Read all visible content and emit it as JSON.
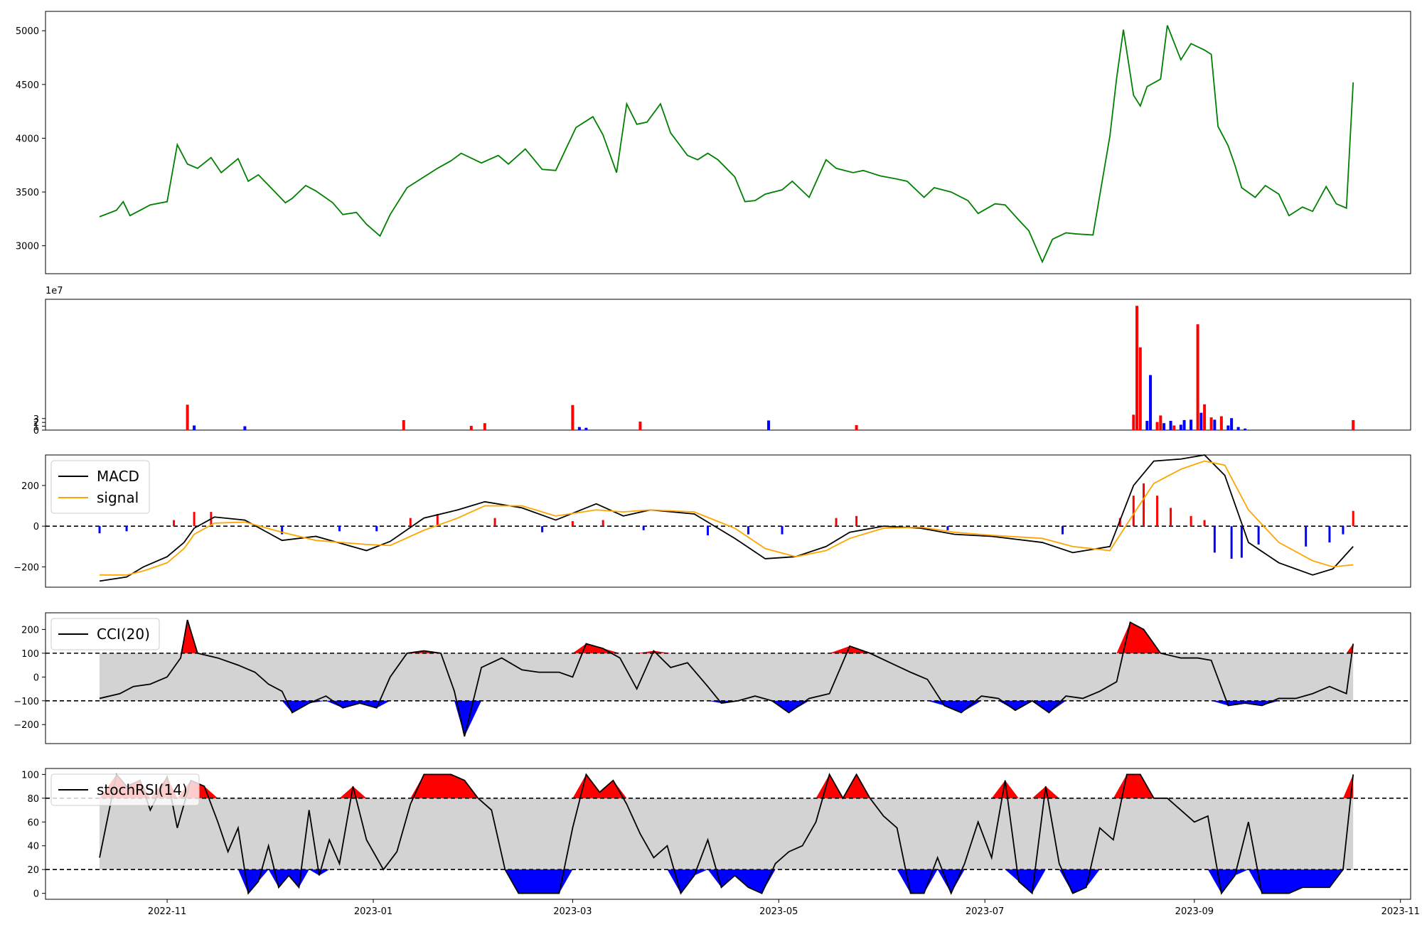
{
  "x_axis": {
    "ticks": [
      "2022-11",
      "2023-01",
      "2023-03",
      "2023-05",
      "2023-07",
      "2023-09",
      "2023-11"
    ],
    "range": [
      "2022-09-26",
      "2023-11-04"
    ]
  },
  "colors": {
    "price": "#008000",
    "up": "#ff0000",
    "down": "#0000ff",
    "line": "#000000",
    "signal": "#ffa500",
    "band": "#d3d3d3"
  },
  "chart_data": [
    {
      "type": "line",
      "panel": "price",
      "ylim": [
        2740,
        5180
      ],
      "yticks": [
        "3000",
        "3500",
        "4000",
        "4500",
        "5000"
      ],
      "x": [
        "2022-10-12",
        "2022-10-17",
        "2022-10-19",
        "2022-10-21",
        "2022-10-24",
        "2022-10-27",
        "2022-11-01",
        "2022-11-04",
        "2022-11-07",
        "2022-11-10",
        "2022-11-14",
        "2022-11-17",
        "2022-11-22",
        "2022-11-25",
        "2022-11-28",
        "2022-12-02",
        "2022-12-06",
        "2022-12-08",
        "2022-12-12",
        "2022-12-15",
        "2022-12-20",
        "2022-12-23",
        "2022-12-27",
        "2022-12-30",
        "2023-01-03",
        "2023-01-06",
        "2023-01-11",
        "2023-01-16",
        "2023-01-20",
        "2023-01-24",
        "2023-01-27",
        "2023-02-02",
        "2023-02-07",
        "2023-02-10",
        "2023-02-15",
        "2023-02-20",
        "2023-02-24",
        "2023-03-02",
        "2023-03-07",
        "2023-03-10",
        "2023-03-14",
        "2023-03-17",
        "2023-03-20",
        "2023-03-23",
        "2023-03-27",
        "2023-03-30",
        "2023-04-04",
        "2023-04-07",
        "2023-04-10",
        "2023-04-13",
        "2023-04-18",
        "2023-04-21",
        "2023-04-24",
        "2023-04-27",
        "2023-05-02",
        "2023-05-05",
        "2023-05-10",
        "2023-05-15",
        "2023-05-18",
        "2023-05-23",
        "2023-05-26",
        "2023-05-31",
        "2023-06-05",
        "2023-06-08",
        "2023-06-13",
        "2023-06-16",
        "2023-06-21",
        "2023-06-26",
        "2023-06-29",
        "2023-07-04",
        "2023-07-07",
        "2023-07-11",
        "2023-07-14",
        "2023-07-18",
        "2023-07-21",
        "2023-07-25",
        "2023-07-28",
        "2023-08-02",
        "2023-08-07",
        "2023-08-09",
        "2023-08-11",
        "2023-08-14",
        "2023-08-16",
        "2023-08-18",
        "2023-08-22",
        "2023-08-24",
        "2023-08-28",
        "2023-08-31",
        "2023-09-04",
        "2023-09-06",
        "2023-09-08",
        "2023-09-11",
        "2023-09-13",
        "2023-09-15",
        "2023-09-19",
        "2023-09-22",
        "2023-09-26",
        "2023-09-29",
        "2023-10-03",
        "2023-10-06",
        "2023-10-10",
        "2023-10-13",
        "2023-10-16",
        "2023-10-18"
      ],
      "values": [
        3270,
        3330,
        3410,
        3280,
        3330,
        3380,
        3410,
        3940,
        3760,
        3720,
        3820,
        3680,
        3810,
        3600,
        3660,
        3530,
        3400,
        3440,
        3560,
        3510,
        3400,
        3290,
        3310,
        3200,
        3090,
        3290,
        3540,
        3640,
        3720,
        3790,
        3860,
        3770,
        3840,
        3760,
        3900,
        3710,
        3700,
        4100,
        4200,
        4030,
        3680,
        4320,
        4130,
        4150,
        4320,
        4050,
        3840,
        3800,
        3860,
        3800,
        3640,
        3410,
        3420,
        3480,
        3520,
        3600,
        3450,
        3800,
        3720,
        3680,
        3700,
        3650,
        3620,
        3600,
        3450,
        3540,
        3500,
        3420,
        3300,
        3390,
        3380,
        3240,
        3140,
        2850,
        3060,
        3120,
        3110,
        3100,
        4020,
        4560,
        5010,
        4400,
        4300,
        4480,
        4550,
        5050,
        4730,
        4880,
        4820,
        4780,
        4110,
        3930,
        3750,
        3540,
        3450,
        3560,
        3480,
        3280,
        3360,
        3320,
        3550,
        3390,
        3350,
        4520
      ]
    },
    {
      "type": "bar",
      "panel": "volume",
      "exponent_label": "1e7",
      "ylim": [
        0,
        34
      ],
      "yticks": [
        "0",
        "1",
        "2",
        "3"
      ],
      "x": [
        "2022-11-07",
        "2022-11-09",
        "2022-11-24",
        "2023-01-10",
        "2023-01-30",
        "2023-02-03",
        "2023-03-01",
        "2023-03-03",
        "2023-03-05",
        "2023-03-21",
        "2023-04-28",
        "2023-05-24",
        "2023-08-14",
        "2023-08-15",
        "2023-08-16",
        "2023-08-18",
        "2023-08-19",
        "2023-08-21",
        "2023-08-22",
        "2023-08-23",
        "2023-08-25",
        "2023-08-26",
        "2023-08-28",
        "2023-08-29",
        "2023-08-31",
        "2023-09-02",
        "2023-09-03",
        "2023-09-04",
        "2023-09-06",
        "2023-09-07",
        "2023-09-09",
        "2023-09-11",
        "2023-09-12",
        "2023-09-14",
        "2023-09-16",
        "2023-10-18"
      ],
      "values": [
        6.6,
        1.2,
        1.0,
        2.6,
        1.1,
        1.8,
        6.5,
        0.8,
        0.6,
        2.2,
        2.5,
        1.3,
        4.0,
        32.3,
        21.5,
        2.4,
        14.3,
        2.1,
        3.8,
        1.8,
        2.4,
        1.2,
        1.4,
        2.6,
        2.7,
        27.5,
        4.5,
        6.7,
        3.3,
        2.7,
        3.6,
        1.2,
        3.1,
        0.8,
        0.4,
        2.6
      ],
      "directions": [
        "up",
        "down",
        "down",
        "up",
        "up",
        "up",
        "up",
        "down",
        "down",
        "up",
        "down",
        "up",
        "up",
        "up",
        "up",
        "down",
        "down",
        "up",
        "up",
        "down",
        "down",
        "up",
        "down",
        "down",
        "down",
        "up",
        "down",
        "up",
        "up",
        "down",
        "up",
        "down",
        "down",
        "down",
        "down",
        "up"
      ]
    },
    {
      "type": "line",
      "panel": "macd",
      "ylim": [
        -300,
        350
      ],
      "yticks": [
        "−200",
        "0",
        "200"
      ],
      "legend": [
        "MACD",
        "signal"
      ],
      "x": [
        "2022-10-12",
        "2022-10-20",
        "2022-10-25",
        "2022-11-01",
        "2022-11-06",
        "2022-11-09",
        "2022-11-15",
        "2022-11-24",
        "2022-12-05",
        "2022-12-15",
        "2022-12-30",
        "2023-01-06",
        "2023-01-16",
        "2023-01-26",
        "2023-02-03",
        "2023-02-14",
        "2023-02-24",
        "2023-03-08",
        "2023-03-16",
        "2023-03-24",
        "2023-04-06",
        "2023-04-18",
        "2023-04-27",
        "2023-05-06",
        "2023-05-15",
        "2023-05-22",
        "2023-06-01",
        "2023-06-12",
        "2023-06-22",
        "2023-07-03",
        "2023-07-18",
        "2023-07-27",
        "2023-08-07",
        "2023-08-14",
        "2023-08-20",
        "2023-08-28",
        "2023-09-04",
        "2023-09-10",
        "2023-09-17",
        "2023-09-26",
        "2023-10-06",
        "2023-10-12",
        "2023-10-18"
      ],
      "series": [
        {
          "name": "MACD",
          "values": [
            -270,
            -250,
            -200,
            -150,
            -80,
            -10,
            45,
            30,
            -70,
            -50,
            -120,
            -75,
            40,
            80,
            120,
            90,
            30,
            110,
            50,
            80,
            60,
            -60,
            -160,
            -150,
            -100,
            -30,
            0,
            -10,
            -40,
            -50,
            -80,
            -130,
            -100,
            200,
            320,
            330,
            350,
            250,
            -80,
            -180,
            -240,
            -210,
            -100
          ]
        },
        {
          "name": "signal",
          "values": [
            -240,
            -240,
            -220,
            -180,
            -110,
            -40,
            15,
            20,
            -30,
            -70,
            -90,
            -95,
            -20,
            40,
            100,
            100,
            50,
            80,
            70,
            80,
            70,
            -10,
            -110,
            -150,
            -120,
            -60,
            -10,
            -5,
            -30,
            -45,
            -60,
            -100,
            -120,
            60,
            210,
            280,
            320,
            300,
            80,
            -80,
            -170,
            -200,
            -190
          ]
        }
      ],
      "histogram_up": [
        [
          "2022-11-03",
          30
        ],
        [
          "2022-11-09",
          70
        ],
        [
          "2022-11-14",
          70
        ],
        [
          "2023-01-12",
          40
        ],
        [
          "2023-01-20",
          60
        ],
        [
          "2023-02-06",
          40
        ],
        [
          "2023-03-01",
          25
        ],
        [
          "2023-03-10",
          30
        ],
        [
          "2023-05-18",
          40
        ],
        [
          "2023-05-24",
          50
        ],
        [
          "2023-08-10",
          40
        ],
        [
          "2023-08-14",
          150
        ],
        [
          "2023-08-17",
          210
        ],
        [
          "2023-08-21",
          150
        ],
        [
          "2023-08-25",
          90
        ],
        [
          "2023-08-31",
          50
        ],
        [
          "2023-09-04",
          30
        ],
        [
          "2023-10-18",
          75
        ]
      ],
      "histogram_down": [
        [
          "2022-10-12",
          -35
        ],
        [
          "2022-10-20",
          -25
        ],
        [
          "2022-12-05",
          -40
        ],
        [
          "2022-12-22",
          -25
        ],
        [
          "2023-01-02",
          -25
        ],
        [
          "2023-02-20",
          -30
        ],
        [
          "2023-03-22",
          -20
        ],
        [
          "2023-04-10",
          -45
        ],
        [
          "2023-04-22",
          -40
        ],
        [
          "2023-05-02",
          -40
        ],
        [
          "2023-06-20",
          -20
        ],
        [
          "2023-07-24",
          -40
        ],
        [
          "2023-09-07",
          -130
        ],
        [
          "2023-09-12",
          -160
        ],
        [
          "2023-09-15",
          -155
        ],
        [
          "2023-09-20",
          -90
        ],
        [
          "2023-10-04",
          -100
        ],
        [
          "2023-10-11",
          -80
        ],
        [
          "2023-10-15",
          -40
        ]
      ]
    },
    {
      "type": "line",
      "panel": "cci",
      "ylim": [
        -280,
        270
      ],
      "yticks": [
        "−200",
        "−100",
        "0",
        "100",
        "200"
      ],
      "legend": [
        "CCI(20)"
      ],
      "thresholds": [
        -100,
        100
      ],
      "x": [
        "2022-10-12",
        "2022-10-18",
        "2022-10-22",
        "2022-10-27",
        "2022-11-01",
        "2022-11-05",
        "2022-11-07",
        "2022-11-10",
        "2022-11-16",
        "2022-11-22",
        "2022-11-27",
        "2022-12-01",
        "2022-12-05",
        "2022-12-08",
        "2022-12-13",
        "2022-12-18",
        "2022-12-23",
        "2022-12-28",
        "2023-01-02",
        "2023-01-06",
        "2023-01-11",
        "2023-01-16",
        "2023-01-21",
        "2023-01-25",
        "2023-01-28",
        "2023-02-02",
        "2023-02-08",
        "2023-02-14",
        "2023-02-19",
        "2023-02-25",
        "2023-03-01",
        "2023-03-05",
        "2023-03-10",
        "2023-03-15",
        "2023-03-20",
        "2023-03-25",
        "2023-03-30",
        "2023-04-04",
        "2023-04-10",
        "2023-04-14",
        "2023-04-19",
        "2023-04-24",
        "2023-04-29",
        "2023-05-04",
        "2023-05-10",
        "2023-05-16",
        "2023-05-22",
        "2023-05-28",
        "2023-06-03",
        "2023-06-09",
        "2023-06-14",
        "2023-06-19",
        "2023-06-24",
        "2023-06-30",
        "2023-07-05",
        "2023-07-10",
        "2023-07-15",
        "2023-07-20",
        "2023-07-25",
        "2023-07-30",
        "2023-08-04",
        "2023-08-09",
        "2023-08-13",
        "2023-08-17",
        "2023-08-22",
        "2023-08-28",
        "2023-09-02",
        "2023-09-06",
        "2023-09-11",
        "2023-09-16",
        "2023-09-21",
        "2023-09-26",
        "2023-10-01",
        "2023-10-06",
        "2023-10-11",
        "2023-10-16",
        "2023-10-18"
      ],
      "values": [
        -90,
        -70,
        -40,
        -30,
        0,
        80,
        240,
        100,
        80,
        50,
        20,
        -30,
        -60,
        -150,
        -110,
        -80,
        -130,
        -110,
        -130,
        0,
        100,
        110,
        100,
        -60,
        -250,
        40,
        80,
        30,
        20,
        20,
        0,
        140,
        120,
        80,
        -50,
        110,
        40,
        60,
        -40,
        -110,
        -100,
        -80,
        -100,
        -150,
        -90,
        -70,
        130,
        100,
        60,
        20,
        -10,
        -120,
        -150,
        -80,
        -90,
        -140,
        -100,
        -150,
        -80,
        -90,
        -60,
        -20,
        230,
        200,
        100,
        80,
        80,
        70,
        -120,
        -110,
        -120,
        -90,
        -90,
        -70,
        -40,
        -70,
        140
      ]
    },
    {
      "type": "line",
      "panel": "stochrsi",
      "ylim": [
        -5,
        105
      ],
      "yticks": [
        "0",
        "20",
        "40",
        "60",
        "80",
        "100"
      ],
      "legend": [
        "stochRSI(14)"
      ],
      "thresholds": [
        20,
        80
      ],
      "x": [
        "2022-10-12",
        "2022-10-17",
        "2022-10-20",
        "2022-10-24",
        "2022-10-27",
        "2022-11-01",
        "2022-11-04",
        "2022-11-08",
        "2022-11-12",
        "2022-11-16",
        "2022-11-19",
        "2022-11-22",
        "2022-11-25",
        "2022-11-28",
        "2022-12-01",
        "2022-12-04",
        "2022-12-07",
        "2022-12-10",
        "2022-12-13",
        "2022-12-16",
        "2022-12-19",
        "2022-12-22",
        "2022-12-26",
        "2022-12-30",
        "2023-01-04",
        "2023-01-08",
        "2023-01-12",
        "2023-01-16",
        "2023-01-20",
        "2023-01-24",
        "2023-01-28",
        "2023-02-01",
        "2023-02-05",
        "2023-02-09",
        "2023-02-13",
        "2023-02-17",
        "2023-02-21",
        "2023-02-25",
        "2023-03-01",
        "2023-03-05",
        "2023-03-09",
        "2023-03-13",
        "2023-03-17",
        "2023-03-21",
        "2023-03-25",
        "2023-03-29",
        "2023-04-02",
        "2023-04-06",
        "2023-04-10",
        "2023-04-14",
        "2023-04-18",
        "2023-04-22",
        "2023-04-26",
        "2023-04-30",
        "2023-05-04",
        "2023-05-08",
        "2023-05-12",
        "2023-05-16",
        "2023-05-20",
        "2023-05-24",
        "2023-05-28",
        "2023-06-01",
        "2023-06-05",
        "2023-06-09",
        "2023-06-13",
        "2023-06-17",
        "2023-06-21",
        "2023-06-25",
        "2023-06-29",
        "2023-07-03",
        "2023-07-07",
        "2023-07-11",
        "2023-07-15",
        "2023-07-19",
        "2023-07-23",
        "2023-07-27",
        "2023-07-31",
        "2023-08-04",
        "2023-08-08",
        "2023-08-12",
        "2023-08-16",
        "2023-08-20",
        "2023-08-24",
        "2023-08-28",
        "2023-09-01",
        "2023-09-05",
        "2023-09-09",
        "2023-09-13",
        "2023-09-17",
        "2023-09-21",
        "2023-09-25",
        "2023-09-29",
        "2023-10-03",
        "2023-10-07",
        "2023-10-11",
        "2023-10-15",
        "2023-10-18"
      ],
      "values": [
        30,
        100,
        90,
        95,
        70,
        98,
        55,
        95,
        90,
        60,
        35,
        55,
        0,
        10,
        40,
        5,
        15,
        5,
        70,
        15,
        45,
        25,
        90,
        45,
        20,
        35,
        75,
        100,
        100,
        100,
        95,
        80,
        70,
        20,
        0,
        0,
        0,
        0,
        55,
        100,
        85,
        95,
        75,
        50,
        30,
        40,
        0,
        15,
        45,
        5,
        15,
        5,
        0,
        25,
        35,
        40,
        60,
        100,
        80,
        100,
        80,
        65,
        55,
        0,
        0,
        30,
        0,
        25,
        60,
        30,
        95,
        10,
        0,
        90,
        25,
        0,
        5,
        55,
        45,
        100,
        100,
        80,
        80,
        70,
        60,
        65,
        0,
        15,
        60,
        0,
        0,
        0,
        5,
        5,
        5,
        20,
        100
      ]
    }
  ]
}
